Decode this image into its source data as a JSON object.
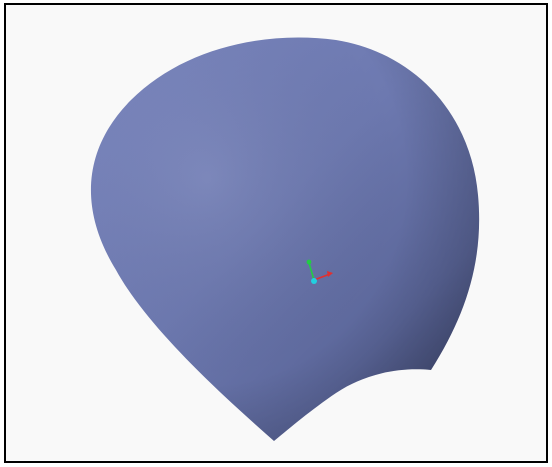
{
  "window": {
    "title": ""
  },
  "viewport": {
    "background_color": "#f9f9f9",
    "border_color": "#000000"
  },
  "model": {
    "type": "3d-surface",
    "shape": "curved-teardrop-surface",
    "color_light": "#7a86bd",
    "color_mid": "#6a76ab",
    "color_dark": "#3f4770"
  },
  "triad": {
    "icon": "coordinate-triad-icon",
    "x_axis_color": "#e03030",
    "y_axis_color": "#22cc44",
    "origin_color": "#22d0e0"
  }
}
